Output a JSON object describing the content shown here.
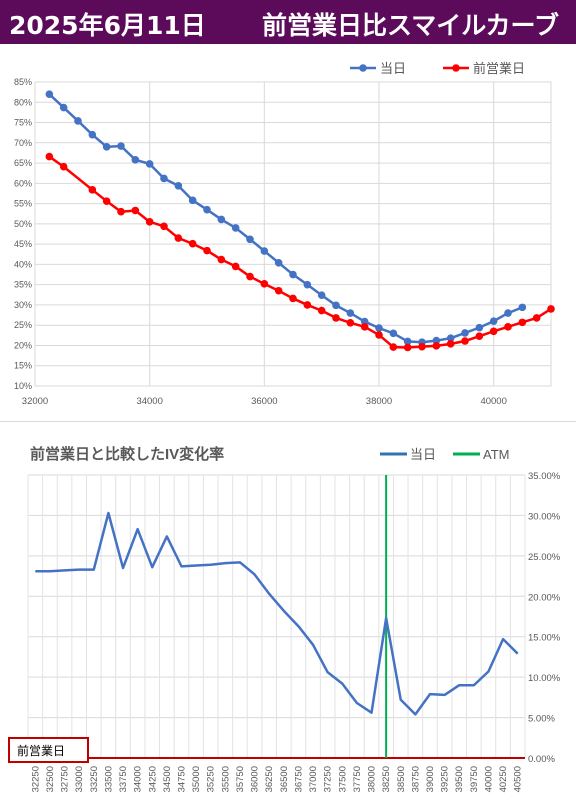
{
  "header": {
    "date": "2025年6月11日",
    "title": "前営業日比スマイルカーブ"
  },
  "colors": {
    "header_bg": "#5c0a5a",
    "today": "#4472c4",
    "prev": "#ff0000",
    "iv_line": "#4472c4",
    "atm": "#00b050",
    "baseline": "#c00000"
  },
  "chart_data": [
    {
      "type": "line",
      "title": "",
      "xlabel": "",
      "ylabel": "",
      "xlim": [
        32000,
        41000
      ],
      "xticks": [
        32000,
        34000,
        36000,
        38000,
        40000
      ],
      "ylim": [
        0.1,
        0.85
      ],
      "yticks": [
        "10%",
        "15%",
        "20%",
        "25%",
        "30%",
        "35%",
        "40%",
        "45%",
        "50%",
        "55%",
        "60%",
        "65%",
        "70%",
        "75%",
        "80%",
        "85%"
      ],
      "grid": true,
      "legend_position": "top",
      "series": [
        {
          "name": "当日",
          "color": "#4472c4",
          "points": [
            [
              32250,
              0.82
            ],
            [
              32500,
              0.787
            ],
            [
              32750,
              0.754
            ],
            [
              33000,
              0.72
            ],
            [
              33250,
              0.69
            ],
            [
              33500,
              0.692
            ],
            [
              33750,
              0.658
            ],
            [
              34000,
              0.648
            ],
            [
              34250,
              0.612
            ],
            [
              34500,
              0.594
            ],
            [
              34750,
              0.558
            ],
            [
              35000,
              0.535
            ],
            [
              35250,
              0.511
            ],
            [
              35500,
              0.49
            ],
            [
              35750,
              0.462
            ],
            [
              36000,
              0.433
            ],
            [
              36250,
              0.404
            ],
            [
              36500,
              0.375
            ],
            [
              36750,
              0.35
            ],
            [
              37000,
              0.324
            ],
            [
              37250,
              0.299
            ],
            [
              37500,
              0.28
            ],
            [
              37750,
              0.259
            ],
            [
              38000,
              0.243
            ],
            [
              38250,
              0.23
            ],
            [
              38500,
              0.21
            ],
            [
              38750,
              0.208
            ],
            [
              39000,
              0.212
            ],
            [
              39250,
              0.218
            ],
            [
              39500,
              0.231
            ],
            [
              39750,
              0.244
            ],
            [
              40000,
              0.26
            ],
            [
              40250,
              0.28
            ],
            [
              40500,
              0.294
            ]
          ]
        },
        {
          "name": "前営業日",
          "color": "#ff0000",
          "points": [
            [
              32250,
              0.666
            ],
            [
              32500,
              0.641
            ],
            [
              33000,
              0.584
            ],
            [
              33250,
              0.556
            ],
            [
              33500,
              0.53
            ],
            [
              33750,
              0.533
            ],
            [
              34000,
              0.505
            ],
            [
              34250,
              0.494
            ],
            [
              34500,
              0.465
            ],
            [
              34750,
              0.451
            ],
            [
              35000,
              0.434
            ],
            [
              35250,
              0.412
            ],
            [
              35500,
              0.395
            ],
            [
              35750,
              0.37
            ],
            [
              36000,
              0.352
            ],
            [
              36250,
              0.335
            ],
            [
              36500,
              0.316
            ],
            [
              36750,
              0.3
            ],
            [
              37000,
              0.286
            ],
            [
              37250,
              0.268
            ],
            [
              37500,
              0.256
            ],
            [
              37750,
              0.246
            ],
            [
              38000,
              0.226
            ],
            [
              38250,
              0.196
            ],
            [
              38500,
              0.195
            ],
            [
              38750,
              0.197
            ],
            [
              39000,
              0.199
            ],
            [
              39250,
              0.204
            ],
            [
              39500,
              0.211
            ],
            [
              39750,
              0.223
            ],
            [
              40000,
              0.235
            ],
            [
              40250,
              0.246
            ],
            [
              40500,
              0.257
            ],
            [
              40750,
              0.268
            ],
            [
              41000,
              0.29
            ]
          ]
        }
      ]
    },
    {
      "type": "line",
      "title": "前営業日と比較したIV変化率",
      "xlabel": "",
      "ylabel": "",
      "categories": [
        "32250",
        "32500",
        "32750",
        "33000",
        "33250",
        "33500",
        "33750",
        "34000",
        "34250",
        "34500",
        "34750",
        "35000",
        "35250",
        "35500",
        "35750",
        "36000",
        "36250",
        "36500",
        "36750",
        "37000",
        "37250",
        "37500",
        "37750",
        "38000",
        "38250",
        "38500",
        "38750",
        "39000",
        "39250",
        "39500",
        "39750",
        "40000",
        "40250",
        "40500"
      ],
      "ylim": [
        0,
        0.35
      ],
      "yticks": [
        "35.00%",
        "30.00%",
        "25.00%",
        "20.00%",
        "15.00%",
        "10.00%",
        "5.00%",
        "0.00%"
      ],
      "grid": true,
      "legend_position": "top-right",
      "atm_index": 24,
      "series": [
        {
          "name": "当日",
          "color": "#4472c4",
          "values": [
            0.231,
            0.231,
            0.232,
            0.233,
            0.233,
            0.303,
            0.235,
            0.283,
            0.236,
            0.274,
            0.237,
            0.238,
            0.239,
            0.241,
            0.242,
            0.227,
            0.203,
            0.182,
            0.163,
            0.14,
            0.106,
            0.092,
            0.068,
            0.056,
            0.173,
            0.072,
            0.054,
            0.079,
            0.078,
            0.09,
            0.09,
            0.107,
            0.147,
            0.129
          ]
        },
        {
          "name": "ATM",
          "color": "#00b050"
        }
      ],
      "baseline_label": "前営業日"
    }
  ]
}
